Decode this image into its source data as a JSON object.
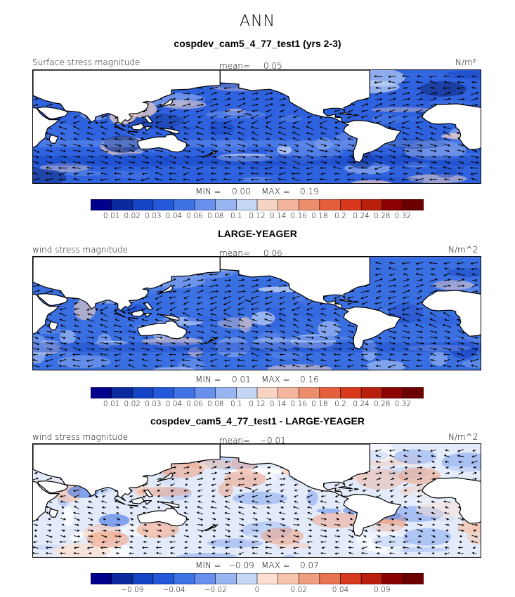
{
  "figure_title": "ANN",
  "colors": {
    "land": "#ffffff",
    "coast": "#000000",
    "arrow": "#000000"
  },
  "chart_data": [
    {
      "type": "heatmap",
      "title": "cospdev_cam5_4_77_test1 (yrs 2-3)",
      "variable_label": "Surface stress magnitude",
      "mean_label": "mean=",
      "mean_value": "0.05",
      "units": "N/m²",
      "min_label": "MIN =",
      "min_value": "0.00",
      "max_label": "MAX =",
      "max_value": "0.19",
      "colorbar": {
        "ticks": [
          "0.01",
          "0.02",
          "0.03",
          "0.04",
          "0.06",
          "0.08",
          "0.1",
          "0.12",
          "0.14",
          "0.16",
          "0.18",
          "0.2",
          "0.24",
          "0.28",
          "0.32"
        ],
        "colors": [
          "#00008b",
          "#0a2a9e",
          "#1443c4",
          "#2358d8",
          "#3f73e4",
          "#6890ec",
          "#98b4f1",
          "#c4d6f6",
          "#f6d3c3",
          "#f4b59d",
          "#ec8d6c",
          "#e55f3c",
          "#d8391c",
          "#b81f0c",
          "#8b0000",
          "#6b0000"
        ]
      }
    },
    {
      "type": "heatmap",
      "title": "LARGE-YEAGER",
      "variable_label": "wind stress magnitude",
      "mean_label": "mean=",
      "mean_value": "0.06",
      "units": "N/m^2",
      "min_label": "MIN =",
      "min_value": "0.01",
      "max_label": "MAX =",
      "max_value": "0.16",
      "colorbar": {
        "ticks": [
          "0.01",
          "0.02",
          "0.03",
          "0.04",
          "0.06",
          "0.08",
          "0.1",
          "0.12",
          "0.14",
          "0.16",
          "0.18",
          "0.2",
          "0.24",
          "0.28",
          "0.32"
        ],
        "colors": [
          "#00008b",
          "#0a2a9e",
          "#1443c4",
          "#2358d8",
          "#3f73e4",
          "#6890ec",
          "#98b4f1",
          "#c4d6f6",
          "#f6d3c3",
          "#f4b59d",
          "#ec8d6c",
          "#e55f3c",
          "#d8391c",
          "#b81f0c",
          "#8b0000",
          "#6b0000"
        ]
      }
    },
    {
      "type": "heatmap",
      "title": "cospdev_cam5_4_77_test1 - LARGE-YEAGER",
      "variable_label": "wind stress magnitude",
      "mean_label": "mean=",
      "mean_value": "−0.01",
      "units": "N/m^2",
      "min_label": "MIN =",
      "min_value": "−0.09",
      "max_label": "MAX =",
      "max_value": "0.07",
      "colorbar": {
        "ticks": [
          "−0.09",
          "−0.04",
          "−0.02",
          "0",
          "0.02",
          "0.04",
          "0.09"
        ],
        "tick_slots": [
          2,
          4,
          6,
          8,
          10,
          12,
          14
        ],
        "colors": [
          "#00008b",
          "#0a2a9e",
          "#1443c4",
          "#2358d8",
          "#3f73e4",
          "#6890ec",
          "#98b4f1",
          "#c4d6f6",
          "#fbe0d2",
          "#f6c3ac",
          "#ef9f80",
          "#e77552",
          "#d8391c",
          "#b81f0c",
          "#8b0000",
          "#6b0000"
        ]
      }
    }
  ]
}
